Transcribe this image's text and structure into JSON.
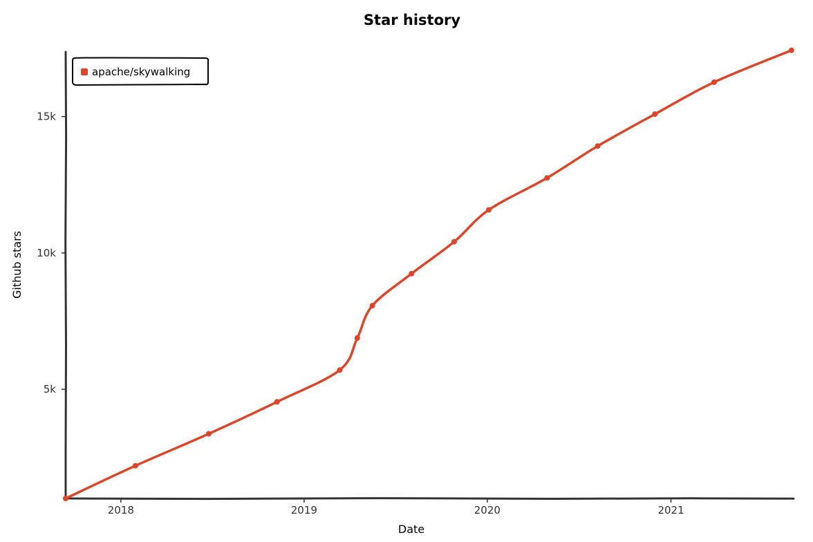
{
  "colors": {
    "series": "#dd4528",
    "axis": "#333333",
    "background": "#ffffff"
  },
  "chart_data": {
    "type": "line",
    "title": "Star history",
    "xlabel": "Date",
    "ylabel": "Github stars",
    "x_ticks": [
      "2018",
      "2019",
      "2020",
      "2021"
    ],
    "y_ticks": [
      "5k",
      "10k",
      "15k"
    ],
    "xlim": [
      "2017-09-13",
      "2021-09-01"
    ],
    "ylim": [
      1000,
      17500
    ],
    "legend": "top-left",
    "grid": false,
    "series": [
      {
        "name": "apache/skywalking",
        "points": [
          {
            "x": "2017-09-13",
            "y": 1000
          },
          {
            "x": "2018-01-30",
            "y": 2200
          },
          {
            "x": "2018-06-25",
            "y": 3370
          },
          {
            "x": "2018-11-08",
            "y": 4540
          },
          {
            "x": "2019-03-13",
            "y": 5710
          },
          {
            "x": "2019-04-17",
            "y": 6880
          },
          {
            "x": "2019-05-17",
            "y": 8070
          },
          {
            "x": "2019-08-03",
            "y": 9240
          },
          {
            "x": "2019-10-27",
            "y": 10410
          },
          {
            "x": "2020-01-04",
            "y": 11580
          },
          {
            "x": "2020-04-29",
            "y": 12750
          },
          {
            "x": "2020-08-08",
            "y": 13920
          },
          {
            "x": "2020-11-30",
            "y": 15090
          },
          {
            "x": "2021-03-28",
            "y": 16260
          },
          {
            "x": "2021-08-29",
            "y": 17430
          }
        ]
      }
    ]
  }
}
